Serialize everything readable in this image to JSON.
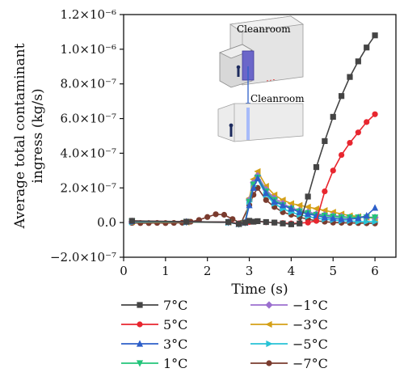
{
  "chart_data": {
    "type": "line",
    "xlabel": "Time (s)",
    "ylabel_lines": [
      "Average total contaminant",
      "ingress (kg/s)"
    ],
    "xlim": [
      0,
      6.5
    ],
    "ylim": [
      -2e-07,
      1.2e-06
    ],
    "x_ticks": [
      0,
      1,
      2,
      3,
      4,
      5,
      6
    ],
    "x_tick_labels": [
      "0",
      "1",
      "2",
      "3",
      "4",
      "5",
      "6"
    ],
    "y_ticks": [
      -2e-07,
      0,
      2e-07,
      4e-07,
      6e-07,
      8e-07,
      1e-06,
      1.2e-06
    ],
    "y_tick_labels": [
      "−2.0×10⁻⁷",
      "0.0",
      "2.0×10⁻⁷",
      "4.0×10⁻⁷",
      "6.0×10⁻⁷",
      "8.0×10⁻⁷",
      "1.0×10⁻⁶",
      "1.2×10⁻⁶"
    ],
    "series": [
      {
        "name": "7°C",
        "color": "#444444",
        "marker": "square",
        "x": [
          0.2,
          1.5,
          2.5,
          2.75,
          2.9,
          3.0,
          3.1,
          3.2,
          3.4,
          3.6,
          3.8,
          4.0,
          4.2,
          4.4,
          4.6,
          4.8,
          5.0,
          5.2,
          5.4,
          5.6,
          5.8,
          6.0
        ],
        "y": [
          1e-08,
          5e-09,
          3e-09,
          -8e-09,
          0,
          1e-08,
          5e-09,
          8e-09,
          3e-09,
          0,
          -5e-09,
          -1e-08,
          -5e-09,
          1.5e-07,
          3.2e-07,
          4.7e-07,
          6.1e-07,
          7.3e-07,
          8.4e-07,
          9.3e-07,
          1.01e-06,
          1.08e-06
        ]
      },
      {
        "name": "5°C",
        "color": "#e8262f",
        "marker": "circle",
        "x": [
          0.2,
          1.5,
          2.5,
          2.75,
          2.9,
          3.0,
          3.1,
          3.2,
          3.4,
          3.6,
          3.8,
          4.0,
          4.2,
          4.4,
          4.6,
          4.8,
          5.0,
          5.2,
          5.4,
          5.6,
          5.8,
          6.0
        ],
        "y": [
          1e-08,
          5e-09,
          3e-09,
          -5e-09,
          0,
          3e-09,
          5e-09,
          8e-09,
          2e-09,
          0,
          -3e-09,
          -5e-09,
          -3e-09,
          0,
          1e-08,
          1.8e-07,
          3e-07,
          3.9e-07,
          4.6e-07,
          5.2e-07,
          5.8e-07,
          6.25e-07
        ]
      },
      {
        "name": "3°C",
        "color": "#2d5fc9",
        "marker": "triangle",
        "x": [
          0.2,
          1.5,
          2.5,
          2.75,
          2.9,
          3.0,
          3.1,
          3.2,
          3.4,
          3.6,
          3.8,
          4.0,
          4.2,
          4.4,
          4.6,
          4.8,
          5.0,
          5.2,
          5.4,
          5.6,
          5.8,
          6.0
        ],
        "y": [
          8e-09,
          5e-09,
          3e-09,
          -8e-09,
          0,
          1e-07,
          2e-07,
          2.55e-07,
          1.7e-07,
          1.2e-07,
          1e-07,
          8e-08,
          6e-08,
          5e-08,
          4e-08,
          3e-08,
          2.5e-08,
          2e-08,
          2e-08,
          2.5e-08,
          4e-08,
          8.5e-08
        ]
      },
      {
        "name": "1°C",
        "color": "#22c47a",
        "marker": "triangle-down",
        "x": [
          0.2,
          1.5,
          2.5,
          2.75,
          2.9,
          3.0,
          3.1,
          3.2,
          3.4,
          3.6,
          3.8,
          4.0,
          4.2,
          4.4,
          4.6,
          4.8,
          5.0,
          5.2,
          5.4,
          5.6,
          5.8,
          6.0
        ],
        "y": [
          6e-09,
          4e-09,
          2e-09,
          -8e-09,
          0,
          1.2e-07,
          2.2e-07,
          2.6e-07,
          1.8e-07,
          1.3e-07,
          1e-07,
          8e-08,
          6.5e-08,
          5.5e-08,
          4.5e-08,
          4e-08,
          3.5e-08,
          3e-08,
          3e-08,
          3e-08,
          3e-08,
          3e-08
        ]
      },
      {
        "name": "−1°C",
        "color": "#9b6fcf",
        "marker": "diamond",
        "x": [
          0.2,
          1.5,
          2.5,
          2.75,
          2.9,
          3.0,
          3.1,
          3.2,
          3.4,
          3.6,
          3.8,
          4.0,
          4.2,
          4.4,
          4.6,
          4.8,
          5.0,
          5.2,
          5.4,
          5.6,
          5.8,
          6.0
        ],
        "y": [
          5e-09,
          3e-09,
          1e-09,
          -8e-09,
          0,
          1.3e-07,
          2.3e-07,
          2.7e-07,
          1.9e-07,
          1.4e-07,
          1.1e-07,
          8.5e-08,
          7e-08,
          6e-08,
          5e-08,
          4.5e-08,
          4e-08,
          3.5e-08,
          3e-08,
          3e-08,
          3e-08,
          3e-08
        ]
      },
      {
        "name": "−3°C",
        "color": "#d4a017",
        "marker": "triangle-left",
        "x": [
          0.2,
          1.5,
          2.5,
          2.75,
          2.9,
          3.0,
          3.1,
          3.2,
          3.4,
          3.6,
          3.8,
          4.0,
          4.2,
          4.4,
          4.6,
          4.8,
          5.0,
          5.2,
          5.4,
          5.6,
          5.8,
          6.0
        ],
        "y": [
          4e-09,
          2e-09,
          1e-09,
          -8e-09,
          0,
          1.4e-07,
          2.5e-07,
          2.95e-07,
          2.1e-07,
          1.6e-07,
          1.3e-07,
          1.1e-07,
          1e-07,
          9e-08,
          8e-08,
          7e-08,
          6e-08,
          5e-08,
          4e-08,
          3.5e-08,
          3e-08,
          2.5e-08
        ]
      },
      {
        "name": "−5°C",
        "color": "#27c3d6",
        "marker": "triangle-right",
        "x": [
          0.2,
          1.5,
          2.5,
          2.75,
          2.9,
          3.0,
          3.1,
          3.2,
          3.4,
          3.6,
          3.8,
          4.0,
          4.2,
          4.4,
          4.6,
          4.8,
          5.0,
          5.2,
          5.4,
          5.6,
          5.8,
          6.0
        ],
        "y": [
          3e-09,
          2e-09,
          0,
          -8e-09,
          0,
          1.2e-07,
          2.1e-07,
          2.5e-07,
          1.6e-07,
          1.1e-07,
          8e-08,
          6e-08,
          4.5e-08,
          3.5e-08,
          2.5e-08,
          2e-08,
          1.5e-08,
          1e-08,
          1e-08,
          5e-09,
          5e-09,
          5e-09
        ]
      },
      {
        "name": "−7°C",
        "color": "#7a3b2e",
        "marker": "circle",
        "x": [
          0.2,
          0.4,
          0.6,
          0.8,
          1.0,
          1.2,
          1.4,
          1.6,
          1.8,
          2.0,
          2.2,
          2.4,
          2.6,
          2.8,
          3.0,
          3.1,
          3.2,
          3.4,
          3.6,
          3.8,
          4.0,
          4.2,
          4.4,
          4.6,
          4.8,
          5.0,
          5.2,
          5.4,
          5.6,
          5.8,
          6.0
        ],
        "y": [
          -2e-09,
          -3e-09,
          -3e-09,
          -2e-09,
          -3e-09,
          -2e-09,
          -1e-09,
          5e-09,
          1.5e-08,
          3.2e-08,
          4.8e-08,
          4.5e-08,
          2e-08,
          -3e-09,
          1e-07,
          1.6e-07,
          2e-07,
          1.3e-07,
          9e-08,
          6e-08,
          4.5e-08,
          3e-08,
          2e-08,
          1e-08,
          5e-09,
          0,
          -1e-09,
          -2e-09,
          -3e-09,
          -4e-09,
          -5e-09
        ]
      }
    ]
  },
  "inset": {
    "label_top": "Cleanroom",
    "label_bottom": "Cleanroom"
  }
}
